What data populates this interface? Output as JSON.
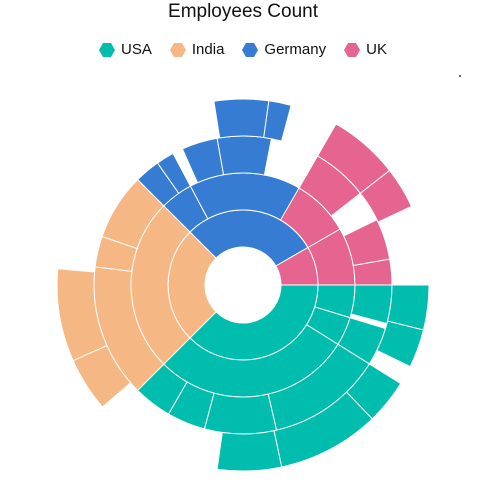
{
  "chart_data": {
    "type": "sunburst",
    "title": "Employees Count",
    "legend": {
      "position": "top",
      "entries": [
        "USA",
        "India",
        "Germany",
        "UK"
      ]
    },
    "colors": {
      "USA": "#00bdae",
      "India": "#f5b885",
      "Germany": "#357cd2",
      "UK": "#e56590"
    },
    "center": "hollow",
    "rings": 4,
    "segments": [
      {
        "series": "USA",
        "level": 1,
        "from": 90,
        "to": 225
      },
      {
        "series": "USA",
        "level": 2,
        "from": 90,
        "to": 107
      },
      {
        "series": "USA",
        "level": 2,
        "from": 107,
        "to": 122
      },
      {
        "series": "USA",
        "level": 2,
        "from": 122,
        "to": 225
      },
      {
        "series": "USA",
        "level": 3,
        "from": 90,
        "to": 105
      },
      {
        "series": "USA",
        "level": 3,
        "from": 107,
        "to": 122
      },
      {
        "series": "USA",
        "level": 3,
        "from": 122,
        "to": 167
      },
      {
        "series": "USA",
        "level": 3,
        "from": 167,
        "to": 195
      },
      {
        "series": "USA",
        "level": 3,
        "from": 195,
        "to": 210
      },
      {
        "series": "USA",
        "level": 3,
        "from": 210,
        "to": 225
      },
      {
        "series": "USA",
        "level": 4,
        "from": 90,
        "to": 104
      },
      {
        "series": "USA",
        "level": 4,
        "from": 104,
        "to": 116
      },
      {
        "series": "USA",
        "level": 4,
        "from": 122,
        "to": 136
      },
      {
        "series": "USA",
        "level": 4,
        "from": 136,
        "to": 168
      },
      {
        "series": "USA",
        "level": 4,
        "from": 168,
        "to": 188
      },
      {
        "series": "India",
        "level": 1,
        "from": 225,
        "to": 315
      },
      {
        "series": "India",
        "level": 2,
        "from": 225,
        "to": 315
      },
      {
        "series": "India",
        "level": 3,
        "from": 225,
        "to": 277
      },
      {
        "series": "India",
        "level": 3,
        "from": 277,
        "to": 289
      },
      {
        "series": "India",
        "level": 3,
        "from": 289,
        "to": 315
      },
      {
        "series": "India",
        "level": 4,
        "from": 229,
        "to": 246
      },
      {
        "series": "India",
        "level": 4,
        "from": 246,
        "to": 275
      },
      {
        "series": "Germany",
        "level": 1,
        "from": 315,
        "to": 420
      },
      {
        "series": "Germany",
        "level": 2,
        "from": 315,
        "to": 332
      },
      {
        "series": "Germany",
        "level": 2,
        "from": 332,
        "to": 396
      },
      {
        "series": "Germany",
        "level": 2,
        "from": 396,
        "to": 420
      },
      {
        "series": "Germany",
        "level": 3,
        "from": 315,
        "to": 325
      },
      {
        "series": "Germany",
        "level": 3,
        "from": 325,
        "to": 332
      },
      {
        "series": "Germany",
        "level": 3,
        "from": 336,
        "to": 350
      },
      {
        "series": "Germany",
        "level": 3,
        "from": 350,
        "to": 371
      },
      {
        "series": "Germany",
        "level": 4,
        "from": 351,
        "to": 368
      },
      {
        "series": "Germany",
        "level": 4,
        "from": 368,
        "to": 375
      },
      {
        "series": "UK",
        "level": 1,
        "from": 420,
        "to": 450
      },
      {
        "series": "UK",
        "level": 1,
        "from": 60,
        "to": 90
      },
      {
        "series": "UK",
        "level": 2,
        "from": 60,
        "to": 90
      },
      {
        "series": "UK",
        "level": 2,
        "from": 30,
        "to": 60
      },
      {
        "series": "UK",
        "level": 3,
        "from": 30,
        "to": 52
      },
      {
        "series": "UK",
        "level": 3,
        "from": 64,
        "to": 80
      },
      {
        "series": "UK",
        "level": 3,
        "from": 80,
        "to": 90
      },
      {
        "series": "UK",
        "level": 4,
        "from": 30,
        "to": 52
      },
      {
        "series": "UK",
        "level": 4,
        "from": 52,
        "to": 65
      }
    ]
  }
}
